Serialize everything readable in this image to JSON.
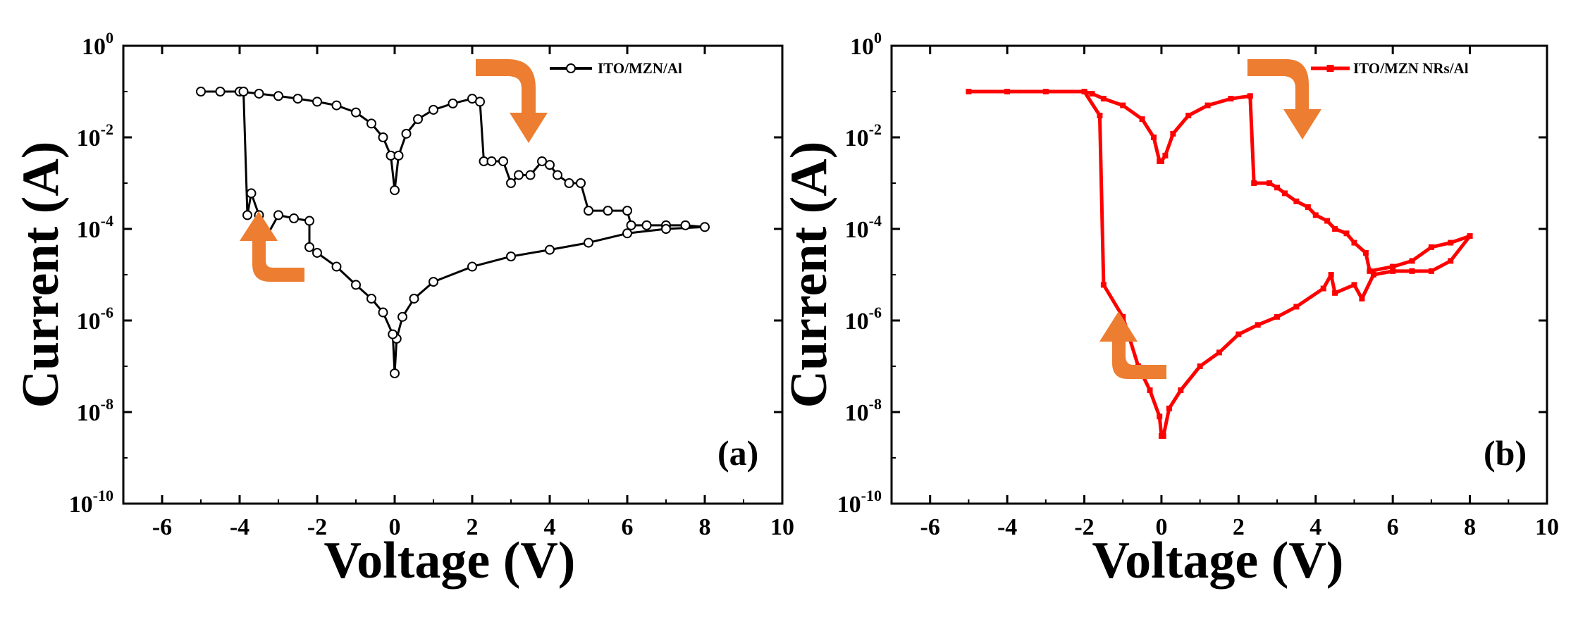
{
  "chart_data": [
    {
      "type": "line",
      "panel_label": "(a)",
      "xlabel": "Voltage (V)",
      "ylabel": "Current (A)",
      "xlim": [
        -7,
        10
      ],
      "ylim_log10": [
        -10,
        0
      ],
      "x_ticks": [
        -6,
        -4,
        -2,
        0,
        2,
        4,
        6,
        8,
        10
      ],
      "x_tick_labels": [
        "-6",
        "-4",
        "-2",
        "0",
        "2",
        "4",
        "6",
        "8",
        "10"
      ],
      "y_ticks_log10": [
        0,
        -2,
        -4,
        -6,
        -8,
        -10
      ],
      "y_tick_labels": [
        {
          "base": "10",
          "exp": "0"
        },
        {
          "base": "10",
          "exp": "-2"
        },
        {
          "base": "10",
          "exp": "-4"
        },
        {
          "base": "10",
          "exp": "-6"
        },
        {
          "base": "10",
          "exp": "-8"
        },
        {
          "base": "10",
          "exp": "-10"
        }
      ],
      "legend_location": "top-right",
      "series": [
        {
          "name": "ITO/MZN/Al",
          "color": "#000000",
          "marker": "open-circle",
          "points": [
            [
              -5.0,
              0.1
            ],
            [
              -4.5,
              0.1
            ],
            [
              -4.0,
              0.1
            ],
            [
              -3.5,
              0.09
            ],
            [
              -3.0,
              0.08
            ],
            [
              -2.5,
              0.07
            ],
            [
              -2.0,
              0.06
            ],
            [
              -1.5,
              0.05
            ],
            [
              -1.0,
              0.035
            ],
            [
              -0.6,
              0.02
            ],
            [
              -0.3,
              0.01
            ],
            [
              -0.1,
              0.004
            ],
            [
              0.0,
              0.0007
            ],
            [
              0.1,
              0.004
            ],
            [
              0.3,
              0.012
            ],
            [
              0.6,
              0.025
            ],
            [
              1.0,
              0.04
            ],
            [
              1.5,
              0.055
            ],
            [
              2.0,
              0.07
            ],
            [
              2.2,
              0.06
            ],
            [
              2.3,
              0.003
            ],
            [
              2.5,
              0.003
            ],
            [
              2.8,
              0.003
            ],
            [
              3.0,
              0.001
            ],
            [
              3.2,
              0.0015
            ],
            [
              3.5,
              0.0015
            ],
            [
              3.8,
              0.003
            ],
            [
              4.0,
              0.0025
            ],
            [
              4.2,
              0.0015
            ],
            [
              4.5,
              0.001
            ],
            [
              4.8,
              0.001
            ],
            [
              5.0,
              0.00025
            ],
            [
              5.5,
              0.00025
            ],
            [
              6.0,
              0.00025
            ],
            [
              6.1,
              0.00012
            ],
            [
              6.5,
              0.00012
            ],
            [
              7.0,
              0.00012
            ],
            [
              7.5,
              0.00012
            ],
            [
              8.0,
              0.00011
            ],
            [
              7.0,
              0.0001
            ],
            [
              6.0,
              8e-05
            ],
            [
              5.0,
              5e-05
            ],
            [
              4.0,
              3.5e-05
            ],
            [
              3.0,
              2.5e-05
            ],
            [
              2.0,
              1.5e-05
            ],
            [
              1.0,
              7e-06
            ],
            [
              0.5,
              3e-06
            ],
            [
              0.2,
              1.2e-06
            ],
            [
              0.05,
              4e-07
            ],
            [
              0.0,
              7e-08
            ],
            [
              -0.05,
              5e-07
            ],
            [
              -0.3,
              1.5e-06
            ],
            [
              -0.6,
              3e-06
            ],
            [
              -1.0,
              6e-06
            ],
            [
              -1.5,
              1.5e-05
            ],
            [
              -2.0,
              3e-05
            ],
            [
              -2.2,
              4e-05
            ],
            [
              -2.2,
              0.00015
            ],
            [
              -2.6,
              0.00017
            ],
            [
              -3.0,
              0.0002
            ],
            [
              -3.3,
              7e-05
            ],
            [
              -3.5,
              0.0002
            ],
            [
              -3.7,
              0.0006
            ],
            [
              -3.8,
              0.0002
            ],
            [
              -3.9,
              0.1
            ]
          ]
        }
      ],
      "arrows": [
        {
          "meaning": "switching direction (top)",
          "color": "#ED7D31"
        },
        {
          "meaning": "switching direction (left)",
          "color": "#ED7D31"
        }
      ]
    },
    {
      "type": "line",
      "panel_label": "(b)",
      "xlabel": "Voltage (V)",
      "ylabel": "Current (A)",
      "xlim": [
        -7,
        10
      ],
      "ylim_log10": [
        -10,
        0
      ],
      "x_ticks": [
        -6,
        -4,
        -2,
        0,
        2,
        4,
        6,
        8,
        10
      ],
      "x_tick_labels": [
        "-6",
        "-4",
        "-2",
        "0",
        "2",
        "4",
        "6",
        "8",
        "10"
      ],
      "y_ticks_log10": [
        0,
        -2,
        -4,
        -6,
        -8,
        -10
      ],
      "y_tick_labels": [
        {
          "base": "10",
          "exp": "0"
        },
        {
          "base": "10",
          "exp": "-2"
        },
        {
          "base": "10",
          "exp": "-4"
        },
        {
          "base": "10",
          "exp": "-6"
        },
        {
          "base": "10",
          "exp": "-8"
        },
        {
          "base": "10",
          "exp": "-10"
        }
      ],
      "legend_location": "top-right",
      "series": [
        {
          "name": "ITO/MZN NRs/Al",
          "color": "#FF0000",
          "marker": "square",
          "points": [
            [
              -5.0,
              0.1
            ],
            [
              -4.0,
              0.1
            ],
            [
              -3.0,
              0.1
            ],
            [
              -2.0,
              0.1
            ],
            [
              -1.8,
              0.09
            ],
            [
              -1.5,
              0.07
            ],
            [
              -1.0,
              0.05
            ],
            [
              -0.5,
              0.025
            ],
            [
              -0.2,
              0.01
            ],
            [
              -0.05,
              0.003
            ],
            [
              0.0,
              0.003
            ],
            [
              0.1,
              0.004
            ],
            [
              0.3,
              0.012
            ],
            [
              0.7,
              0.03
            ],
            [
              1.2,
              0.05
            ],
            [
              1.8,
              0.07
            ],
            [
              2.3,
              0.08
            ],
            [
              2.4,
              0.001
            ],
            [
              2.8,
              0.001
            ],
            [
              3.0,
              0.0008
            ],
            [
              3.2,
              0.0006
            ],
            [
              3.5,
              0.0004
            ],
            [
              3.8,
              0.0003
            ],
            [
              4.0,
              0.0002
            ],
            [
              4.3,
              0.00015
            ],
            [
              4.5,
              0.0001
            ],
            [
              4.8,
              8e-05
            ],
            [
              5.0,
              5e-05
            ],
            [
              5.3,
              3e-05
            ],
            [
              5.4,
              1.2e-05
            ],
            [
              6.0,
              1.5e-05
            ],
            [
              6.5,
              2e-05
            ],
            [
              7.0,
              4e-05
            ],
            [
              7.5,
              5e-05
            ],
            [
              8.0,
              7e-05
            ],
            [
              7.5,
              2e-05
            ],
            [
              7.0,
              1.2e-05
            ],
            [
              6.5,
              1.2e-05
            ],
            [
              6.0,
              1.2e-05
            ],
            [
              5.5,
              1e-05
            ],
            [
              5.2,
              3e-06
            ],
            [
              5.0,
              6e-06
            ],
            [
              4.5,
              4e-06
            ],
            [
              4.4,
              1e-05
            ],
            [
              4.2,
              5e-06
            ],
            [
              3.5,
              2e-06
            ],
            [
              3.0,
              1.2e-06
            ],
            [
              2.5,
              8e-07
            ],
            [
              2.0,
              5e-07
            ],
            [
              1.5,
              2e-07
            ],
            [
              1.0,
              1e-07
            ],
            [
              0.5,
              3e-08
            ],
            [
              0.2,
              1.2e-08
            ],
            [
              0.05,
              3e-09
            ],
            [
              0.0,
              3e-09
            ],
            [
              -0.05,
              8e-09
            ],
            [
              -0.3,
              3e-08
            ],
            [
              -0.6,
              1e-07
            ],
            [
              -1.0,
              1.2e-06
            ],
            [
              -1.5,
              6e-06
            ],
            [
              -1.6,
              0.03
            ],
            [
              -2.0,
              0.1
            ]
          ]
        }
      ],
      "arrows": [
        {
          "meaning": "switching direction (top)",
          "color": "#ED7D31"
        },
        {
          "meaning": "switching direction (bottom-left)",
          "color": "#ED7D31"
        }
      ]
    }
  ]
}
